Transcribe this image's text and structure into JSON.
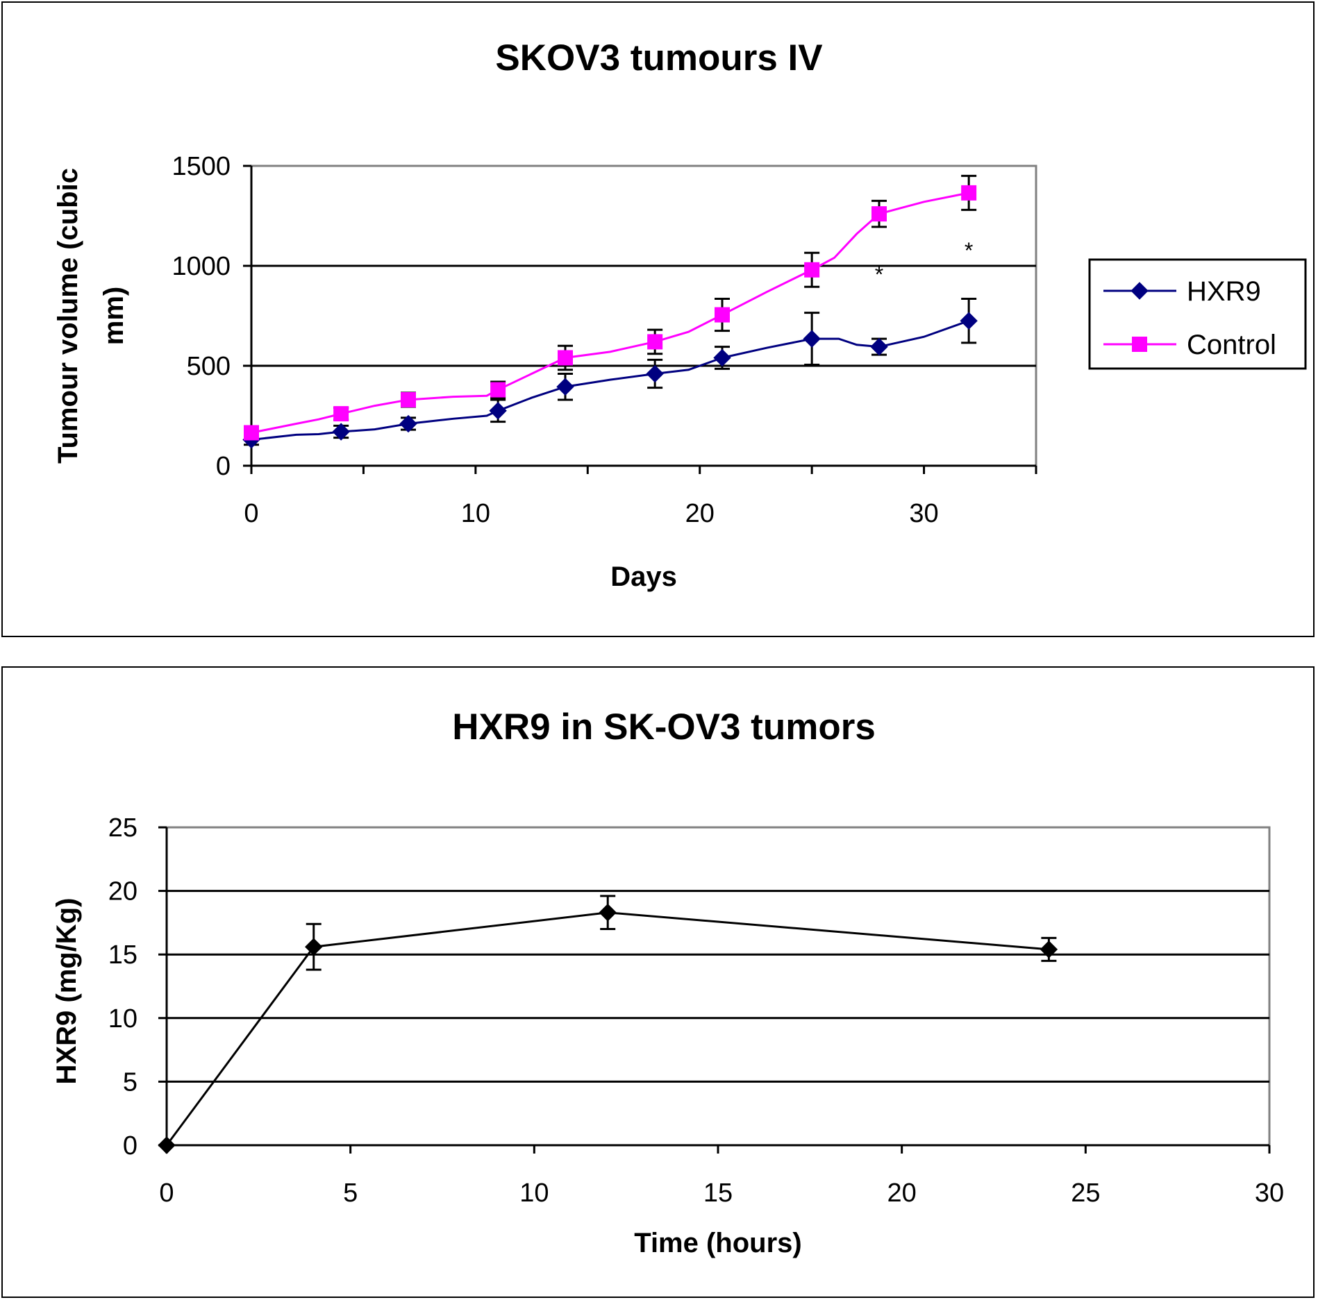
{
  "chart_data": [
    {
      "type": "line",
      "title": "SKOV3 tumours IV",
      "xlabel": "Days",
      "ylabel": "Tumour volume (cubic mm)",
      "ylabel_lines": [
        "Tumour volume (cubic",
        "mm)"
      ],
      "xlim": [
        0,
        35
      ],
      "ylim": [
        0,
        1500
      ],
      "xticks": [
        0,
        10,
        20,
        30
      ],
      "yticks": [
        0,
        500,
        1000,
        1500
      ],
      "grid": "horizontal",
      "legend": "right",
      "series": [
        {
          "name": "HXR9",
          "color": "#000080",
          "marker": "diamond",
          "x": [
            0,
            4,
            7,
            11,
            14,
            18,
            21,
            25,
            28,
            32
          ],
          "y": [
            130,
            170,
            210,
            275,
            395,
            460,
            540,
            635,
            595,
            725
          ],
          "err": [
            25,
            30,
            30,
            55,
            65,
            70,
            55,
            130,
            40,
            110
          ],
          "line": [
            [
              0,
              130
            ],
            [
              2,
              155
            ],
            [
              3,
              158
            ],
            [
              4,
              170
            ],
            [
              5.5,
              182
            ],
            [
              7,
              210
            ],
            [
              9,
              235
            ],
            [
              10.5,
              250
            ],
            [
              11,
              275
            ],
            [
              12.5,
              340
            ],
            [
              14,
              395
            ],
            [
              16,
              430
            ],
            [
              18,
              460
            ],
            [
              19.5,
              480
            ],
            [
              21,
              540
            ],
            [
              23,
              590
            ],
            [
              25,
              635
            ],
            [
              26.2,
              635
            ],
            [
              27,
              605
            ],
            [
              28,
              595
            ],
            [
              30,
              645
            ],
            [
              32,
              725
            ]
          ]
        },
        {
          "name": "Control",
          "color": "#FF00FF",
          "marker": "square",
          "x": [
            0,
            4,
            7,
            11,
            14,
            18,
            21,
            25,
            28,
            32
          ],
          "y": [
            165,
            260,
            330,
            380,
            540,
            620,
            755,
            980,
            1260,
            1365
          ],
          "err": [
            20,
            30,
            35,
            40,
            60,
            60,
            80,
            85,
            65,
            85
          ],
          "line": [
            [
              0,
              165
            ],
            [
              2,
              210
            ],
            [
              3,
              232
            ],
            [
              4,
              260
            ],
            [
              5.5,
              300
            ],
            [
              7,
              330
            ],
            [
              9,
              345
            ],
            [
              10.5,
              350
            ],
            [
              11,
              380
            ],
            [
              12.5,
              460
            ],
            [
              14,
              540
            ],
            [
              16,
              570
            ],
            [
              18,
              620
            ],
            [
              19.5,
              670
            ],
            [
              21,
              755
            ],
            [
              23,
              870
            ],
            [
              25,
              980
            ],
            [
              26,
              1040
            ],
            [
              27,
              1160
            ],
            [
              28,
              1260
            ],
            [
              29,
              1290
            ],
            [
              30,
              1320
            ],
            [
              32,
              1365
            ]
          ]
        }
      ],
      "annotations": [
        {
          "text": "*",
          "x": 28,
          "y": 960
        },
        {
          "text": "*",
          "x": 32,
          "y": 1080
        }
      ]
    },
    {
      "type": "line",
      "title": "HXR9 in SK-OV3 tumors",
      "xlabel": "Time (hours)",
      "ylabel": "HXR9 (mg/Kg)",
      "xlim": [
        0,
        30
      ],
      "ylim": [
        0,
        25
      ],
      "xticks": [
        0,
        5,
        10,
        15,
        20,
        25,
        30
      ],
      "yticks": [
        0,
        5,
        10,
        15,
        20,
        25
      ],
      "grid": "horizontal",
      "legend": "none",
      "series": [
        {
          "color": "#000000",
          "marker": "diamond",
          "x": [
            0,
            4,
            12,
            24
          ],
          "y": [
            0,
            15.6,
            18.3,
            15.4
          ],
          "err": [
            0,
            1.8,
            1.3,
            0.9
          ]
        }
      ]
    }
  ]
}
